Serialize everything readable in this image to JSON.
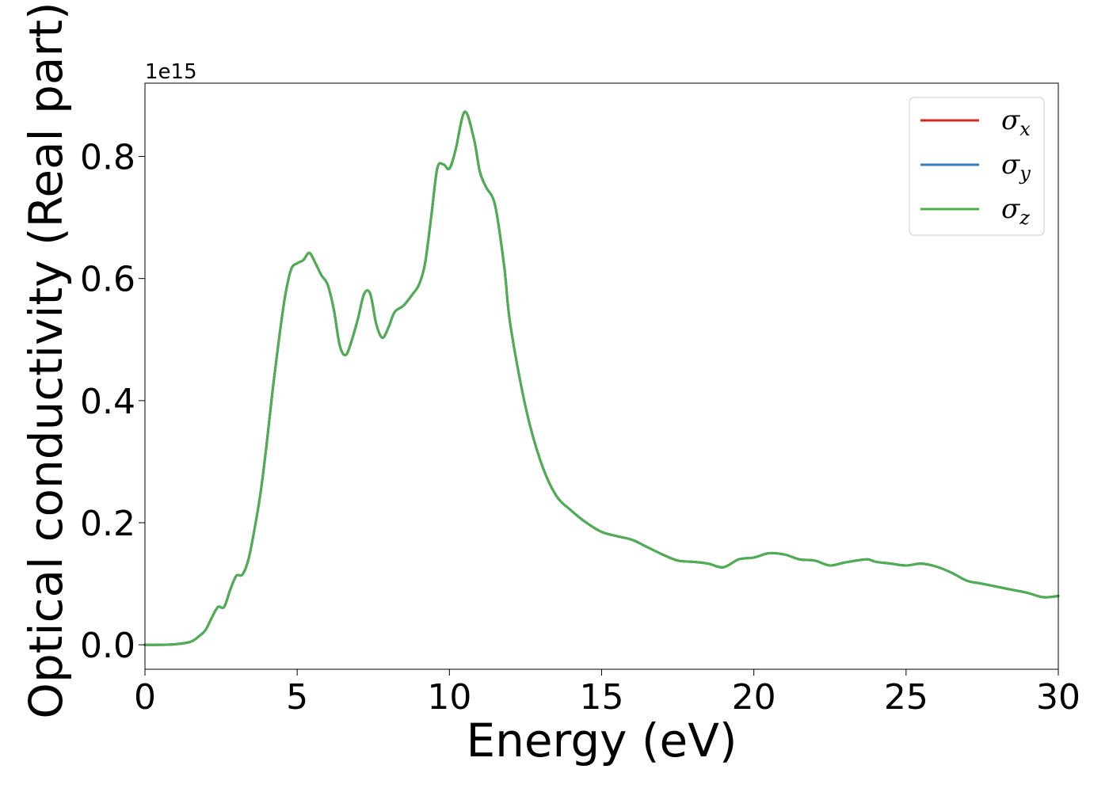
{
  "chart_data": {
    "type": "line",
    "xlabel": "Energy (eV)",
    "ylabel": "Optical conductivity (Real part)",
    "y_offset_text": "1e15",
    "xlim": [
      0,
      30
    ],
    "ylim": [
      -0.04,
      0.92
    ],
    "xticks": [
      0,
      5,
      10,
      15,
      20,
      25,
      30
    ],
    "xtick_labels": [
      "0",
      "5",
      "10",
      "15",
      "20",
      "25",
      "30"
    ],
    "yticks": [
      0.0,
      0.2,
      0.4,
      0.6,
      0.8
    ],
    "ytick_labels": [
      "0.0",
      "0.2",
      "0.4",
      "0.6",
      "0.8"
    ],
    "grid": false,
    "legend_position": "top-right",
    "series": [
      {
        "name": "σ",
        "subscript": "x",
        "color": "#d62728"
      },
      {
        "name": "σ",
        "subscript": "y",
        "color": "#3a7bb8"
      },
      {
        "name": "σ",
        "subscript": "z",
        "color": "#4caf50"
      }
    ],
    "x": [
      0,
      0.5,
      1.0,
      1.5,
      1.8,
      2.0,
      2.2,
      2.4,
      2.6,
      2.8,
      3.0,
      3.2,
      3.4,
      3.6,
      3.8,
      4.0,
      4.2,
      4.4,
      4.6,
      4.8,
      5.0,
      5.2,
      5.4,
      5.6,
      5.8,
      6.0,
      6.2,
      6.4,
      6.6,
      6.8,
      7.0,
      7.2,
      7.4,
      7.6,
      7.8,
      8.0,
      8.2,
      8.5,
      8.8,
      9.0,
      9.2,
      9.4,
      9.6,
      9.8,
      10.0,
      10.2,
      10.5,
      10.8,
      11.0,
      11.2,
      11.5,
      11.8,
      12.0,
      12.5,
      13.0,
      13.5,
      14.0,
      14.5,
      15.0,
      15.5,
      16.0,
      16.5,
      17.0,
      17.5,
      18.0,
      18.5,
      19.0,
      19.5,
      20.0,
      20.5,
      21.0,
      21.5,
      22.0,
      22.5,
      23.0,
      23.7,
      24.0,
      24.5,
      25.0,
      25.5,
      26.0,
      26.5,
      27.0,
      27.5,
      28.0,
      28.5,
      29.0,
      29.5,
      30.0
    ],
    "values": [
      0.0,
      0.0,
      0.001,
      0.005,
      0.015,
      0.025,
      0.045,
      0.062,
      0.062,
      0.09,
      0.113,
      0.115,
      0.14,
      0.19,
      0.25,
      0.33,
      0.42,
      0.5,
      0.57,
      0.615,
      0.625,
      0.63,
      0.642,
      0.625,
      0.605,
      0.59,
      0.55,
      0.49,
      0.475,
      0.5,
      0.535,
      0.575,
      0.575,
      0.525,
      0.503,
      0.52,
      0.545,
      0.556,
      0.575,
      0.59,
      0.625,
      0.7,
      0.78,
      0.787,
      0.78,
      0.81,
      0.873,
      0.83,
      0.775,
      0.75,
      0.72,
      0.62,
      0.525,
      0.39,
      0.3,
      0.245,
      0.22,
      0.2,
      0.185,
      0.178,
      0.172,
      0.16,
      0.148,
      0.138,
      0.136,
      0.133,
      0.127,
      0.14,
      0.143,
      0.15,
      0.148,
      0.14,
      0.138,
      0.13,
      0.135,
      0.14,
      0.136,
      0.133,
      0.13,
      0.133,
      0.128,
      0.118,
      0.105,
      0.1,
      0.095,
      0.09,
      0.085,
      0.078,
      0.08
    ]
  }
}
